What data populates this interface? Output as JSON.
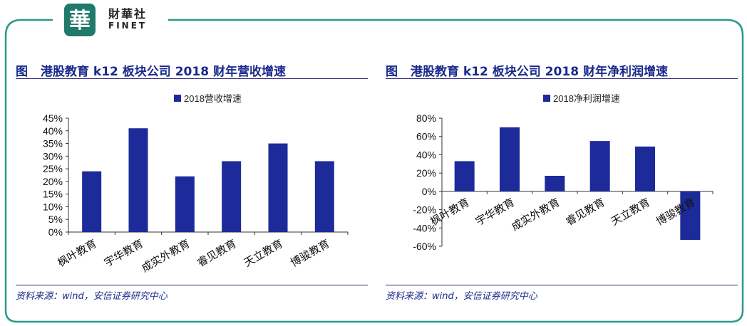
{
  "brand": {
    "glyph": "華",
    "name_cn": "財華社",
    "name_en": "FINET"
  },
  "colors": {
    "frame": "#2a9a8a",
    "bar": "#1c2a9a",
    "title": "#1a2a8c"
  },
  "panels": [
    {
      "fig_label": "图",
      "title": "港股教育 k12 板块公司 2018 财年营收增速",
      "source": "资料来源：wind，安信证券研究中心"
    },
    {
      "fig_label": "图",
      "title": "港股教育 k12 板块公司 2018 财年净利润增速",
      "source": "资料来源：wind，安信证券研究中心"
    }
  ],
  "chart_data": [
    {
      "type": "bar",
      "categories": [
        "枫叶教育",
        "宇华教育",
        "成实外教育",
        "睿见教育",
        "天立教育",
        "博骏教育"
      ],
      "series": [
        {
          "name": "2018营收增速",
          "values": [
            0.24,
            0.41,
            0.22,
            0.28,
            0.35,
            0.28
          ]
        }
      ],
      "ylim": [
        0,
        0.45
      ],
      "yticks": [
        0,
        0.05,
        0.1,
        0.15,
        0.2,
        0.25,
        0.3,
        0.35,
        0.4,
        0.45
      ],
      "ytick_labels": [
        "0%",
        "5%",
        "10%",
        "15%",
        "20%",
        "25%",
        "30%",
        "35%",
        "40%",
        "45%"
      ],
      "legend": "top-center",
      "grid": false
    },
    {
      "type": "bar",
      "categories": [
        "枫叶教育",
        "宇华教育",
        "成实外教育",
        "睿见教育",
        "天立教育",
        "博骏教育"
      ],
      "series": [
        {
          "name": "2018净利润增速",
          "values": [
            0.33,
            0.7,
            0.17,
            0.55,
            0.49,
            -0.53
          ]
        }
      ],
      "ylim": [
        -0.6,
        0.8
      ],
      "yticks": [
        -0.6,
        -0.4,
        -0.2,
        0,
        0.2,
        0.4,
        0.6,
        0.8
      ],
      "ytick_labels": [
        "-60%",
        "-40%",
        "-20%",
        "0%",
        "20%",
        "40%",
        "60%",
        "80%"
      ],
      "legend": "top-center",
      "grid": false
    }
  ]
}
